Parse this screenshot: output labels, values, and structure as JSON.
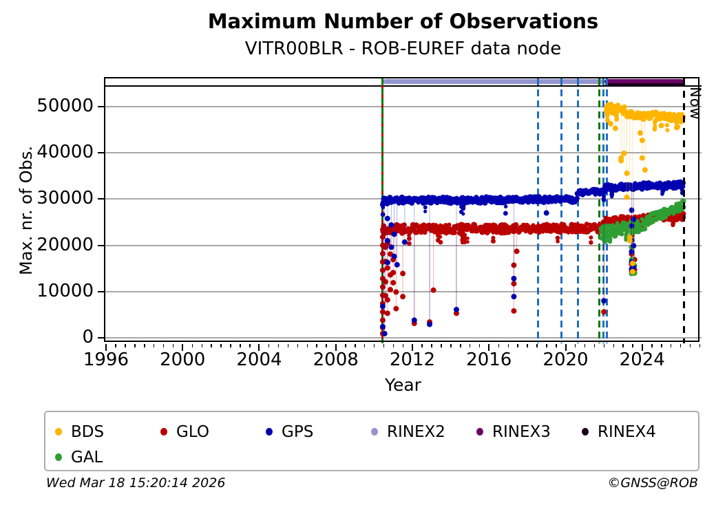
{
  "header": {
    "title": "Maximum Number of Observations",
    "subtitle": "VITR00BLR - ROB-EUREF data node"
  },
  "footer": {
    "timestamp": "Wed Mar 18 15:20:14 2026",
    "credit": "©GNSS@ROB"
  },
  "chart_data": {
    "type": "scatter",
    "title": "Maximum Number of Observations",
    "subtitle": "VITR00BLR - ROB-EUREF data node",
    "xlabel": "Year",
    "ylabel": "Max. nr. of Obs.",
    "now_label": "Now",
    "now_year": 2026.17,
    "axis": {
      "xlim": [
        1995.93,
        2027.1
      ],
      "ylim": [
        -1350,
        56250
      ],
      "xticks": [
        1996,
        2000,
        2004,
        2008,
        2012,
        2016,
        2020,
        2024
      ],
      "yticks": [
        0,
        10000,
        20000,
        30000,
        40000,
        50000
      ],
      "minor_tick_step": 0.5,
      "grid": "horizontal-only",
      "gridline_color": "#A8A8A8"
    },
    "events": [
      {
        "year": 2010.45,
        "style": "green-red-dashed"
      },
      {
        "year": 2018.55,
        "style": "blue-dashed"
      },
      {
        "year": 2019.79,
        "style": "blue-dashed"
      },
      {
        "year": 2020.64,
        "style": "blue-dashed"
      },
      {
        "year": 2021.75,
        "style": "green-dashed"
      },
      {
        "year": 2021.96,
        "style": "blue-dashed"
      },
      {
        "year": 2022.14,
        "style": "blue-dashed"
      }
    ],
    "event_colors": {
      "blue": "#1E6FC0",
      "green": "#007A00",
      "red": "#C00000"
    },
    "version_bars": [
      {
        "name": "RINEX2",
        "start": 2010.45,
        "end": 2021.98,
        "color": "#9494CE",
        "row": 1
      },
      {
        "name": "RINEX3",
        "start": 2022.02,
        "end": 2026.17,
        "color": "#6A0068",
        "row": 1
      },
      {
        "name": "RINEX4",
        "start": 2022.05,
        "end": 2026.17,
        "color": "#180018",
        "row": 2
      }
    ],
    "series": [
      {
        "name": "GLO",
        "color": "#BB0000",
        "bands": [
          {
            "x0": 2010.45,
            "x1": 2022.0,
            "y0": 23500,
            "y1": 23700,
            "spread": 900,
            "tail": 2400,
            "tail_p": 0.06
          },
          {
            "x0": 2022.0,
            "x1": 2026.15,
            "y0": 25300,
            "y1": 26300,
            "spread": 700,
            "tail": 1500,
            "tail_p": 0.05
          }
        ],
        "outliers": [
          [
            2010.45,
            [
              21800,
              20000,
              18200,
              16400,
              14600,
              12800,
              11000,
              9200,
              7400,
              5600,
              3800,
              2200,
              900
            ]
          ],
          [
            2010.6,
            [
              19600,
              16500,
              12100,
              9100
            ]
          ],
          [
            2010.7,
            [
              20400,
              15100,
              8200,
              5300
            ]
          ],
          [
            2010.85,
            [
              18100,
              13600,
              10400
            ]
          ],
          [
            2011.0,
            [
              16900,
              14100,
              11900
            ]
          ],
          [
            2011.15,
            [
              9900,
              6300
            ]
          ],
          [
            2011.5,
            [
              13900,
              8900
            ]
          ],
          [
            2012.1,
            [
              3100
            ]
          ],
          [
            2012.9,
            [
              3400
            ]
          ],
          [
            2013.1,
            [
              10300
            ]
          ],
          [
            2014.3,
            [
              5300
            ]
          ],
          [
            2017.3,
            [
              15700,
              11700,
              5800
            ]
          ],
          [
            2017.45,
            [
              18700
            ]
          ],
          [
            2022.0,
            [
              5600
            ]
          ],
          [
            2023.45,
            [
              22100,
              18100,
              15900,
              14400
            ]
          ],
          [
            2023.6,
            [
              16900,
              14700
            ]
          ]
        ]
      },
      {
        "name": "GAL",
        "color": "#2F9E33",
        "bands": [
          {
            "x0": 2021.85,
            "x1": 2024.3,
            "y0": 23000,
            "y1": 24500,
            "spread": 1400,
            "tail": 1500,
            "tail_p": 0.05
          },
          {
            "x0": 2024.3,
            "x1": 2026.15,
            "y0": 25600,
            "y1": 28600,
            "spread": 1000,
            "tail": 800,
            "tail_p": 0.03
          }
        ],
        "outliers": [
          [
            2021.9,
            [
              22900,
              21600
            ]
          ],
          [
            2022.05,
            [
              23600,
              20900
            ]
          ],
          [
            2023.45,
            [
              19600,
              16900,
              14900,
              13900
            ]
          ],
          [
            2023.6,
            [
              15600,
              14000
            ]
          ]
        ]
      },
      {
        "name": "GPS",
        "color": "#0000B0",
        "bands": [
          {
            "x0": 2010.45,
            "x1": 2020.6,
            "y0": 29700,
            "y1": 29900,
            "spread": 650,
            "tail": 2600,
            "tail_p": 0.05
          },
          {
            "x0": 2020.6,
            "x1": 2022.05,
            "y0": 31400,
            "y1": 31600,
            "spread": 600,
            "tail": 1500,
            "tail_p": 0.04
          },
          {
            "x0": 2022.05,
            "x1": 2026.15,
            "y0": 32500,
            "y1": 33100,
            "spread": 650,
            "tail": 1700,
            "tail_p": 0.05
          }
        ],
        "outliers": [
          [
            2010.45,
            [
              28800,
              6800,
              2400
            ]
          ],
          [
            2010.55,
            [
              900
            ]
          ],
          [
            2010.7,
            [
              25800,
              21000,
              16300
            ]
          ],
          [
            2010.9,
            [
              24400,
              19600
            ]
          ],
          [
            2011.05,
            [
              22400,
              17600
            ]
          ],
          [
            2011.2,
            [
              15800
            ]
          ],
          [
            2011.6,
            [
              20700
            ]
          ],
          [
            2012.1,
            [
              3800
            ]
          ],
          [
            2012.9,
            [
              2900
            ]
          ],
          [
            2014.3,
            [
              6100
            ]
          ],
          [
            2017.3,
            [
              12800,
              8900
            ]
          ],
          [
            2019.0,
            [
              27000
            ]
          ],
          [
            2022.0,
            [
              8000
            ]
          ],
          [
            2023.45,
            [
              27600,
              24200,
              21100,
              18600,
              16400,
              14900
            ]
          ],
          [
            2023.55,
            [
              25600,
              19900,
              15200
            ]
          ]
        ]
      },
      {
        "name": "BDS",
        "color": "#FFB400",
        "bands": [
          {
            "x0": 2022.12,
            "x1": 2023.1,
            "y0": 49700,
            "y1": 49300,
            "spread": 950,
            "tail": 1800,
            "tail_p": 0.05
          },
          {
            "x0": 2023.1,
            "x1": 2026.15,
            "y0": 48400,
            "y1": 47500,
            "spread": 850,
            "tail": 2000,
            "tail_p": 0.06
          }
        ],
        "outliers": [
          [
            2022.35,
            [
              46300
            ]
          ],
          [
            2022.6,
            [
              45300
            ]
          ],
          [
            2022.9,
            [
              38900,
              38300
            ]
          ],
          [
            2023.05,
            [
              39900
            ]
          ],
          [
            2023.2,
            [
              35600,
              30400
            ]
          ],
          [
            2023.35,
            [
              21700,
              21000
            ]
          ],
          [
            2023.5,
            [
              16100,
              14300
            ]
          ],
          [
            2023.9,
            [
              44300
            ]
          ],
          [
            2024.0,
            [
              42700,
              38900
            ]
          ],
          [
            2024.15,
            [
              36300
            ]
          ],
          [
            2025.0,
            [
              45900
            ]
          ],
          [
            2025.85,
            [
              45600
            ]
          ]
        ]
      }
    ],
    "legend": {
      "position": "bottom",
      "entries": [
        {
          "label": "BDS",
          "color": "#FFB400"
        },
        {
          "label": "GLO",
          "color": "#BB0000"
        },
        {
          "label": "GPS",
          "color": "#0000B0"
        },
        {
          "label": "RINEX2",
          "color": "#9494CE"
        },
        {
          "label": "RINEX3",
          "color": "#6A0068"
        },
        {
          "label": "RINEX4",
          "color": "#180018"
        },
        {
          "label": "GAL",
          "color": "#2F9E33"
        }
      ]
    }
  }
}
